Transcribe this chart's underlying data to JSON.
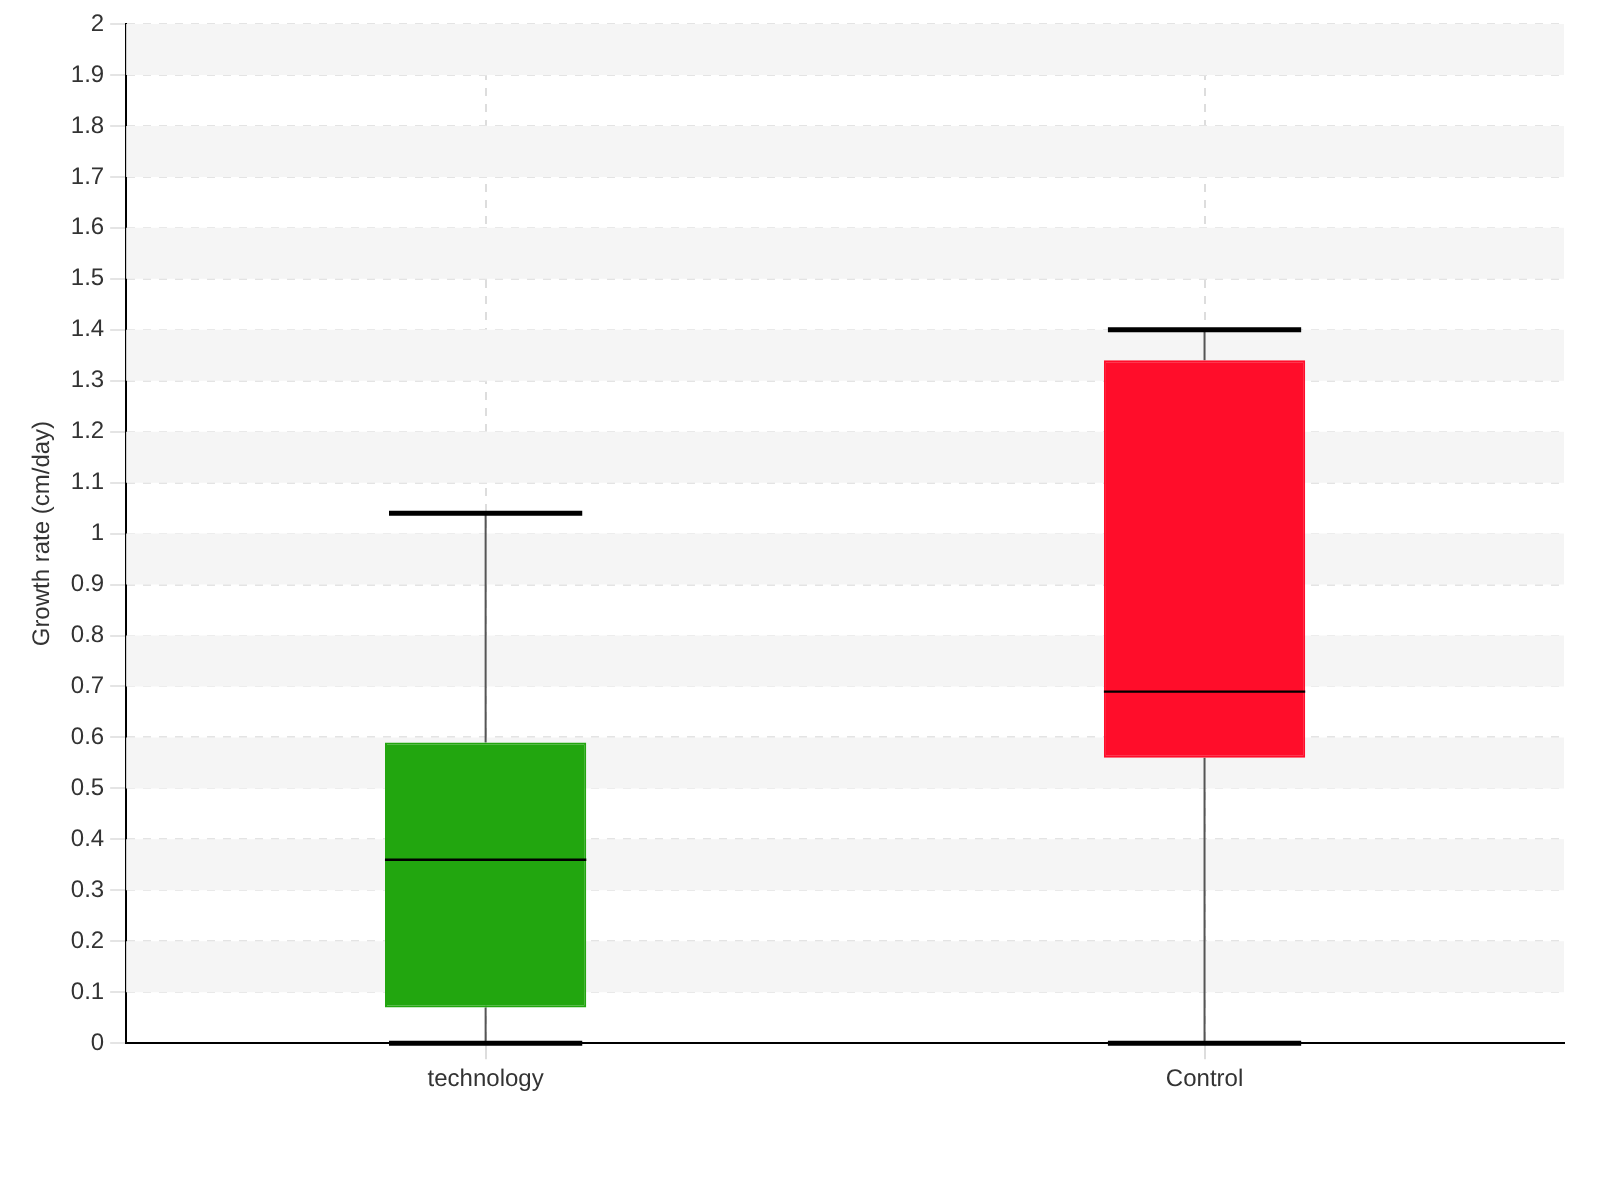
{
  "chart_data": {
    "type": "box",
    "ylabel": "Growth rate (cm/day)",
    "categories": [
      "technology",
      "Control"
    ],
    "colors": [
      "#22a60f",
      "#ff0d2a"
    ],
    "boxes": [
      {
        "low": 0,
        "q1": 0.07,
        "median": 0.36,
        "q3": 0.59,
        "high": 1.04
      },
      {
        "low": 0,
        "q1": 0.56,
        "median": 0.69,
        "q3": 1.34,
        "high": 1.4
      }
    ],
    "ylim": [
      0,
      2
    ],
    "yticks": [
      0,
      0.1,
      0.2,
      0.3,
      0.4,
      0.5,
      0.6,
      0.7,
      0.8,
      0.9,
      1,
      1.1,
      1.2,
      1.3,
      1.4,
      1.5,
      1.6,
      1.7,
      1.8,
      1.9,
      2
    ],
    "grid": true,
    "legend": false
  }
}
